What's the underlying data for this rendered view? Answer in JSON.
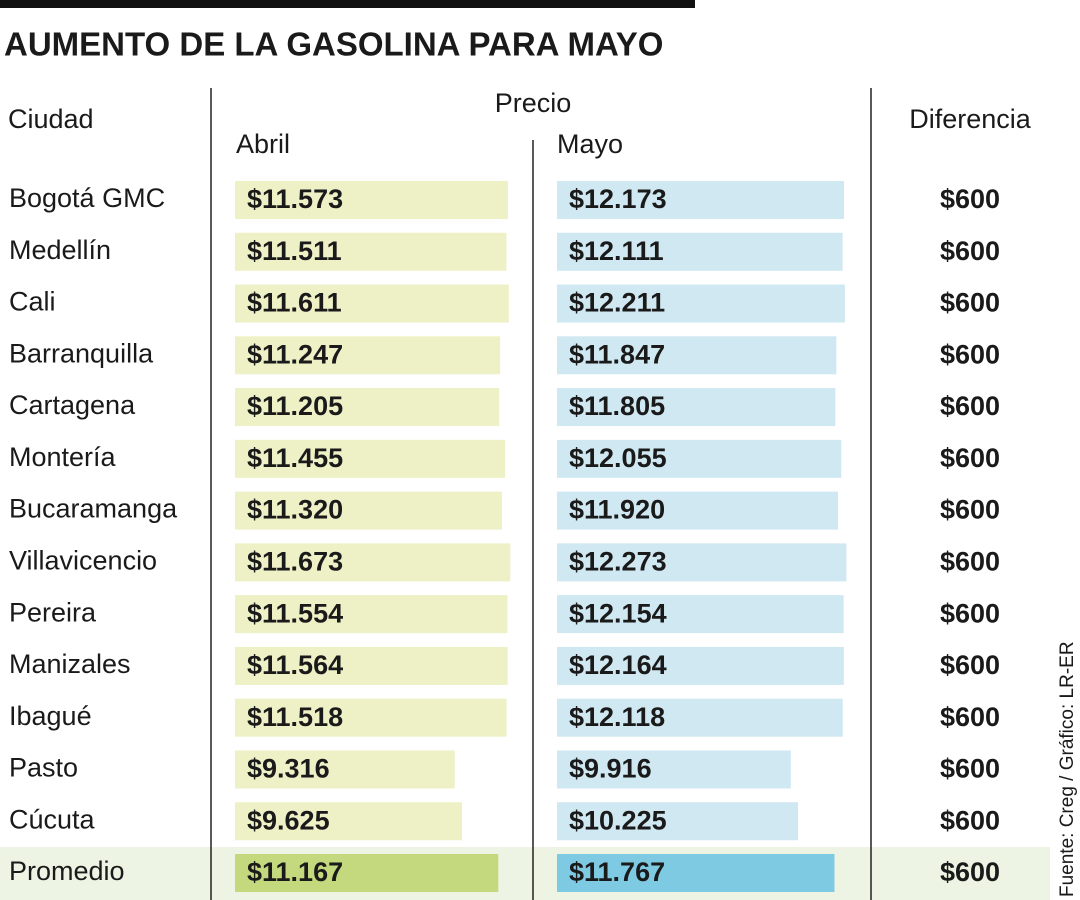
{
  "chart_data": {
    "type": "bar-table",
    "title": "AUMENTO DE LA GASOLINA PARA MAYO",
    "headers": {
      "city": "Ciudad",
      "price": "Precio",
      "difference": "Diferencia"
    },
    "source": "Fuente: Creg / Gráfico: LR-ER",
    "categories": [
      "Bogotá GMC",
      "Medellín",
      "Cali",
      "Barranquilla",
      "Cartagena",
      "Montería",
      "Bucaramanga",
      "Villavicencio",
      "Pereira",
      "Manizales",
      "Ibagué",
      "Pasto",
      "Cúcuta",
      "Promedio"
    ],
    "series": [
      {
        "name": "Abril",
        "color": "#eef0c6",
        "highlight_color": "#c4d97e",
        "values": [
          11573,
          11511,
          11611,
          11247,
          11205,
          11455,
          11320,
          11673,
          11554,
          11564,
          11518,
          9316,
          9625,
          11167
        ],
        "value_labels": [
          "$11.573",
          "$11.511",
          "$11.611",
          "$11.247",
          "$11.205",
          "$11.455",
          "$11.320",
          "$11.673",
          "$11.554",
          "$11.564",
          "$11.518",
          "$9.316",
          "$9.625",
          "$11.167"
        ]
      },
      {
        "name": "Mayo",
        "color": "#cfe8f2",
        "highlight_color": "#7ecae2",
        "values": [
          12173,
          12111,
          12211,
          11847,
          11805,
          12055,
          11920,
          12273,
          12154,
          12164,
          12118,
          9916,
          10225,
          11767
        ],
        "value_labels": [
          "$12.173",
          "$12.111",
          "$12.211",
          "$11.847",
          "$11.805",
          "$12.055",
          "$11.920",
          "$12.273",
          "$12.154",
          "$12.164",
          "$12.118",
          "$9.916",
          "$10.225",
          "$11.767"
        ]
      }
    ],
    "difference": {
      "values": [
        600,
        600,
        600,
        600,
        600,
        600,
        600,
        600,
        600,
        600,
        600,
        600,
        600,
        600
      ],
      "value_labels": [
        "$600",
        "$600",
        "$600",
        "$600",
        "$600",
        "$600",
        "$600",
        "$600",
        "$600",
        "$600",
        "$600",
        "$600",
        "$600",
        "$600"
      ]
    }
  }
}
